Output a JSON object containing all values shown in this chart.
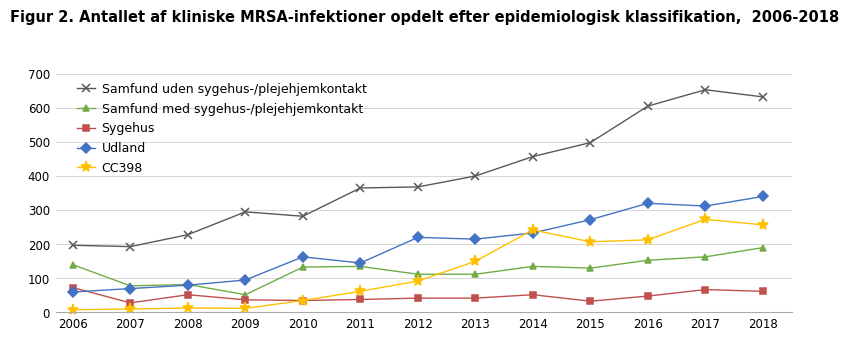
{
  "title": "Figur 2. Antallet af kliniske MRSA-infektioner opdelt efter epidemiologisk klassifikation,  2006-2018",
  "years": [
    2006,
    2007,
    2008,
    2009,
    2010,
    2011,
    2012,
    2013,
    2014,
    2015,
    2016,
    2017,
    2018
  ],
  "series": [
    {
      "label": "Samfund uden sygehus-/plejehjemkontakt",
      "color": "#595959",
      "marker": "x",
      "markersize": 6,
      "values": [
        197,
        193,
        228,
        295,
        282,
        365,
        368,
        400,
        457,
        498,
        605,
        653,
        632
      ]
    },
    {
      "label": "Samfund med sygehus-/plejehjemkontakt",
      "color": "#70ad47",
      "marker": "^",
      "markersize": 5,
      "values": [
        140,
        78,
        82,
        52,
        133,
        135,
        112,
        112,
        135,
        130,
        153,
        163,
        190
      ]
    },
    {
      "label": "Sygehus",
      "color": "#c0504d",
      "marker": "s",
      "markersize": 5,
      "values": [
        73,
        28,
        52,
        37,
        35,
        38,
        42,
        42,
        52,
        33,
        48,
        67,
        62
      ]
    },
    {
      "label": "Udland",
      "color": "#4472c4",
      "marker": "D",
      "markersize": 5,
      "values": [
        60,
        70,
        80,
        95,
        163,
        145,
        220,
        215,
        233,
        272,
        320,
        312,
        340
      ]
    },
    {
      "label": "CC398",
      "color": "#ffc000",
      "marker": "*",
      "markersize": 8,
      "values": [
        8,
        10,
        13,
        12,
        35,
        62,
        92,
        150,
        242,
        207,
        213,
        273,
        257
      ]
    }
  ],
  "ylim": [
    0,
    700
  ],
  "yticks": [
    0,
    100,
    200,
    300,
    400,
    500,
    600,
    700
  ],
  "background_color": "#ffffff",
  "title_fontsize": 10.5,
  "legend_fontsize": 9,
  "tick_fontsize": 8.5
}
